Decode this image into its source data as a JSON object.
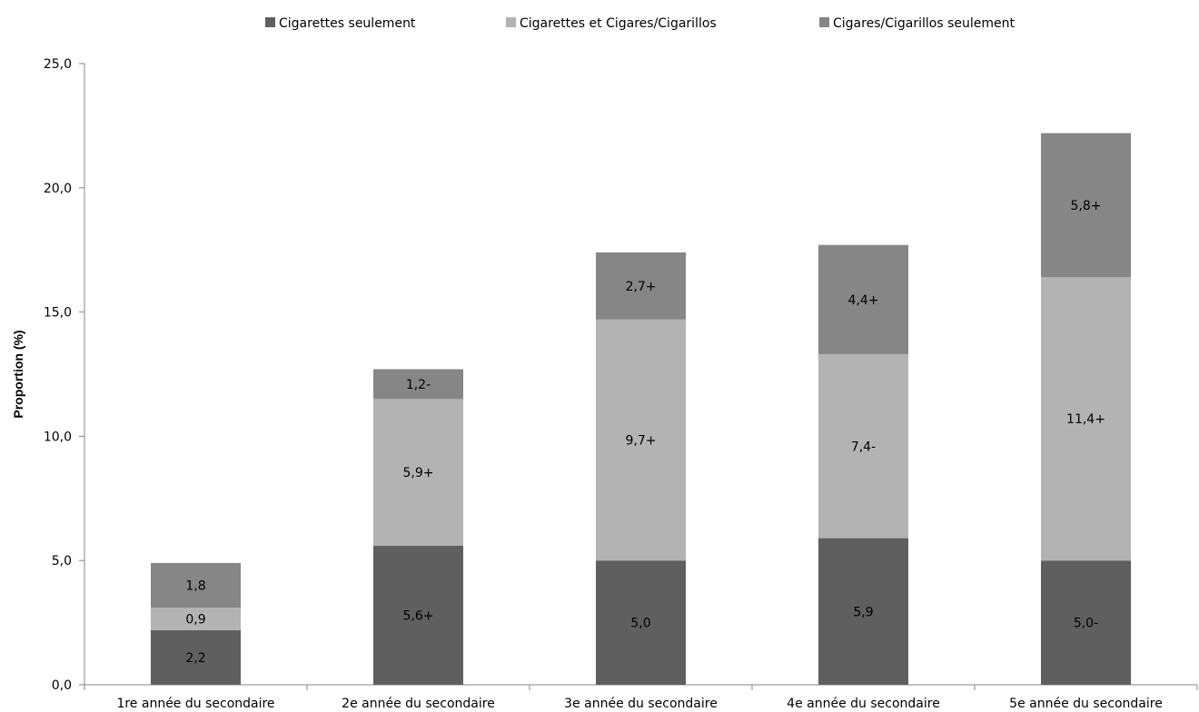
{
  "chart_data": {
    "type": "bar",
    "stacked": true,
    "categories": [
      "1re année du secondaire",
      "2e année du secondaire",
      "3e année du secondaire",
      "4e année du secondaire",
      "5e année du secondaire"
    ],
    "series": [
      {
        "name": "Cigarettes seulement",
        "color": "#5f5f5f",
        "values": [
          2.2,
          5.6,
          5.0,
          5.9,
          5.0
        ],
        "labels": [
          "2,2",
          "5,6+",
          "5,0",
          "5,9",
          "5,0-"
        ]
      },
      {
        "name": "Cigarettes et Cigares/Cigarillos",
        "color": "#b3b3b3",
        "values": [
          0.9,
          5.9,
          9.7,
          7.4,
          11.4
        ],
        "labels": [
          "0,9",
          "5,9+",
          "9,7+",
          "7,4-",
          "11,4+"
        ]
      },
      {
        "name": "Cigares/Cigarillos seulement",
        "color": "#868686",
        "values": [
          1.8,
          1.2,
          2.7,
          4.4,
          5.8
        ],
        "labels": [
          "1,8",
          "1,2-",
          "2,7+",
          "4,4+",
          "5,8+"
        ]
      }
    ],
    "ylabel": "Proportion (%)",
    "xlabel": "",
    "ylim": [
      0,
      25
    ],
    "yticks": [
      "0,0",
      "5,0",
      "10,0",
      "15,0",
      "20,0",
      "25,0"
    ],
    "grid": false,
    "legend_position": "top"
  }
}
